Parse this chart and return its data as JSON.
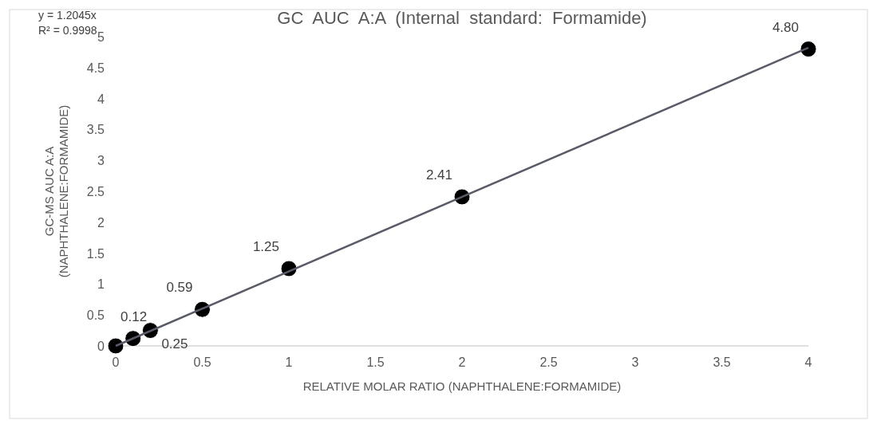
{
  "chart_data": {
    "type": "scatter",
    "title": "GC  AUC  A:A  (Internal  standard:  Formamide)",
    "xlabel": "RELATIVE MOLAR RATIO (NAPHTHALENE:FORMAMIDE)",
    "ylabel": "GC-MS AUC A:A (NAPHTHALENE:FORMAMIDE)",
    "annotations": [
      "y = 1.2045x",
      "R² = 0.9998"
    ],
    "xlim": [
      0,
      4
    ],
    "xticks": [
      0,
      0.5,
      1,
      1.5,
      2,
      2.5,
      3,
      3.5,
      4
    ],
    "ylim": [
      0,
      5
    ],
    "yticks": [
      0,
      0.5,
      1,
      1.5,
      2,
      2.5,
      3,
      3.5,
      4,
      4.5,
      5
    ],
    "grid": false,
    "series": [
      {
        "marker": "circle",
        "color": "#000000",
        "x": [
          0,
          0.1,
          0.2,
          0.5,
          1,
          2,
          4
        ],
        "values": [
          0,
          0.12,
          0.25,
          0.59,
          1.25,
          2.41,
          4.8
        ],
        "value_labels": [
          null,
          "0.12",
          "0.25",
          "0.59",
          "1.25",
          "2.41",
          "4.80"
        ]
      },
      {
        "type": "line",
        "color": "#595b66",
        "x": [
          0,
          4
        ],
        "values": [
          0,
          4.82
        ]
      }
    ]
  }
}
